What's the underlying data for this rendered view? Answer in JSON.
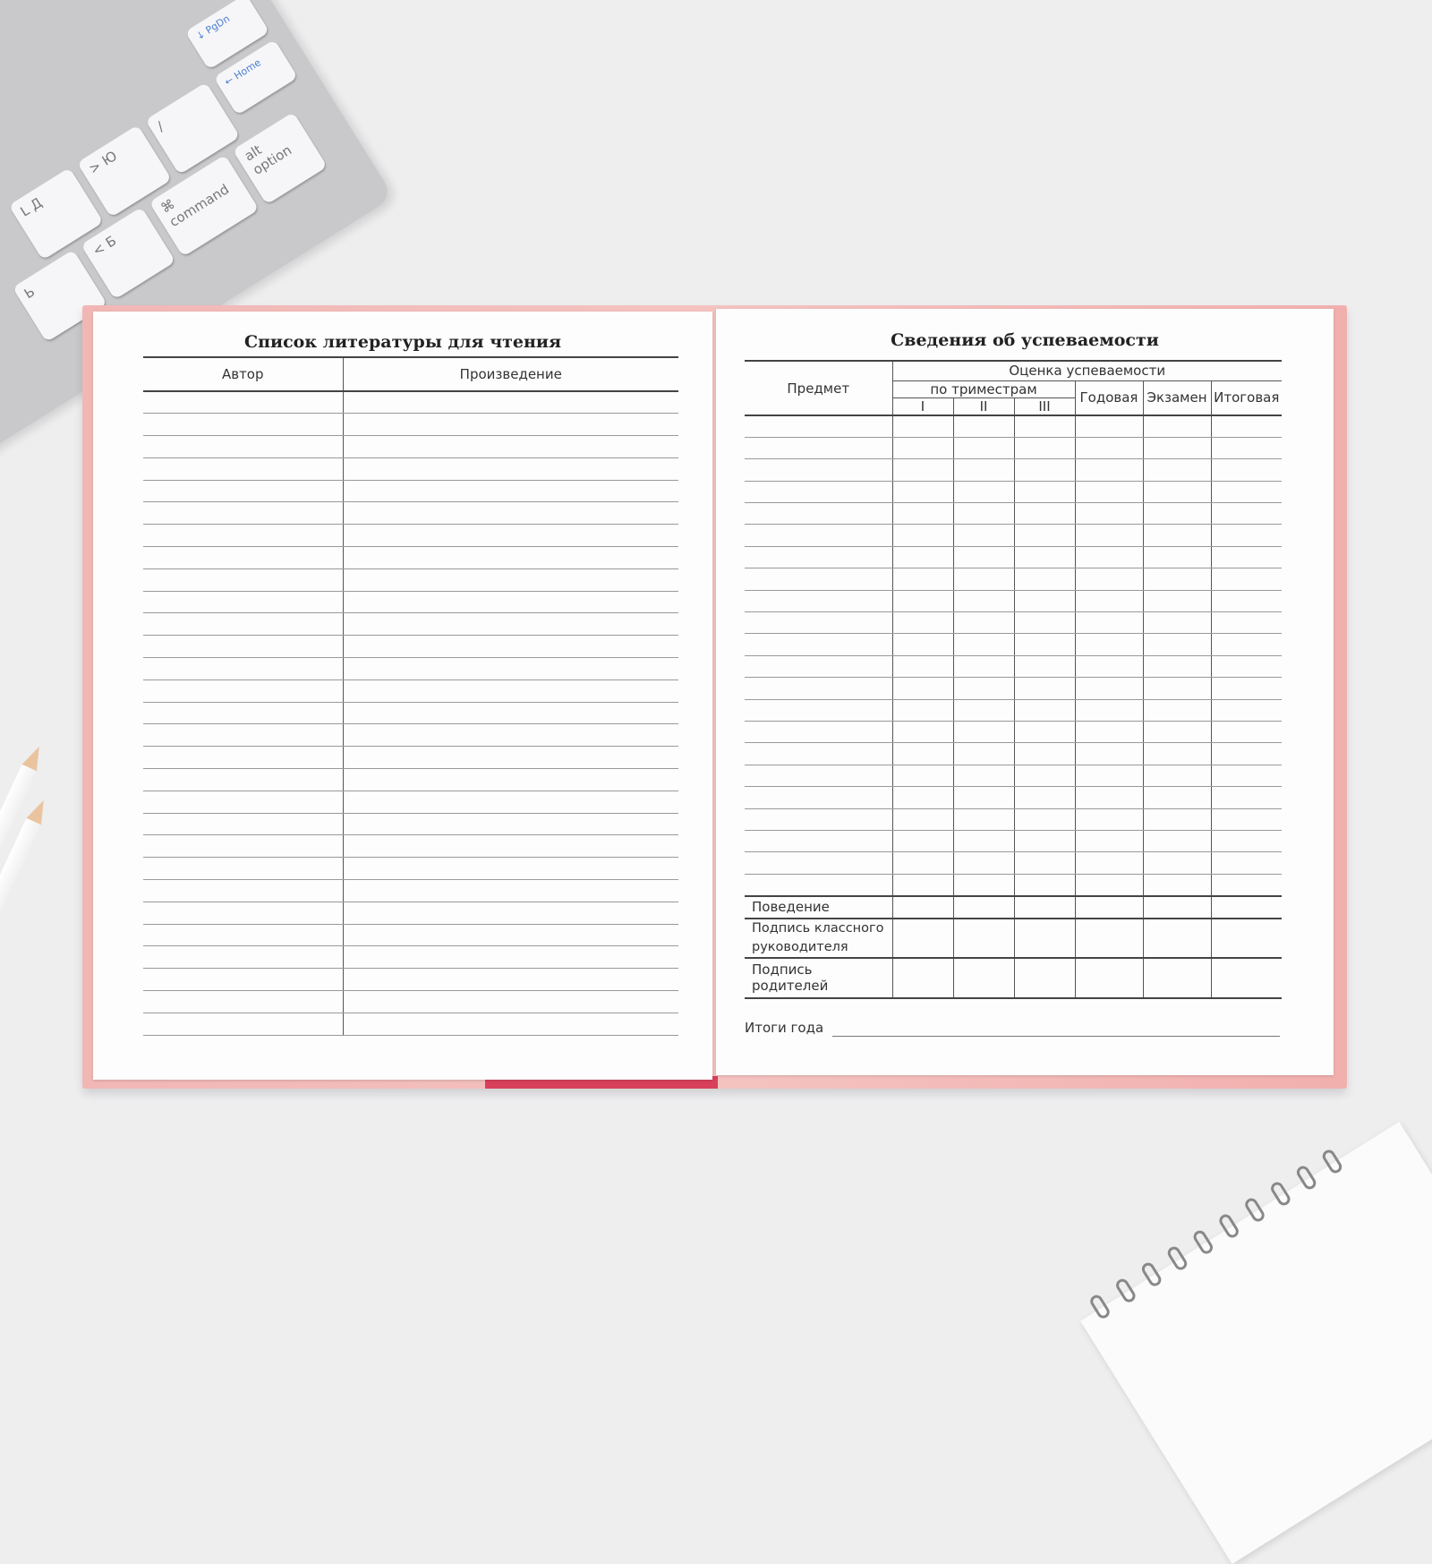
{
  "keyboard": {
    "keys": [
      "Д",
      "Ю",
      ">",
      ".",
      "Б",
      "<",
      ",",
      "Ь",
      "⌘",
      "command",
      "alt",
      "option",
      "Home",
      "PgDn",
      "/",
      "L"
    ]
  },
  "left_page": {
    "title": "Список литературы для чтения",
    "columns": [
      "Автор",
      "Произведение"
    ]
  },
  "right_page": {
    "title": "Сведения об успеваемости",
    "header": {
      "subject": "Предмет",
      "group": "Оценка успеваемости",
      "trimesters": "по триместрам",
      "trimester_cols": [
        "I",
        "II",
        "III"
      ],
      "annual": "Годовая",
      "exam": "Экзамен",
      "final": "Итоговая"
    },
    "footer_rows": [
      "Поведение",
      "Подпись классного руководителя",
      "Подпись родителей"
    ],
    "year_results": "Итоги года"
  },
  "colors": {
    "cover": "#f4c3c0",
    "page": "#fdfdfd",
    "background": "#eeeeef"
  }
}
